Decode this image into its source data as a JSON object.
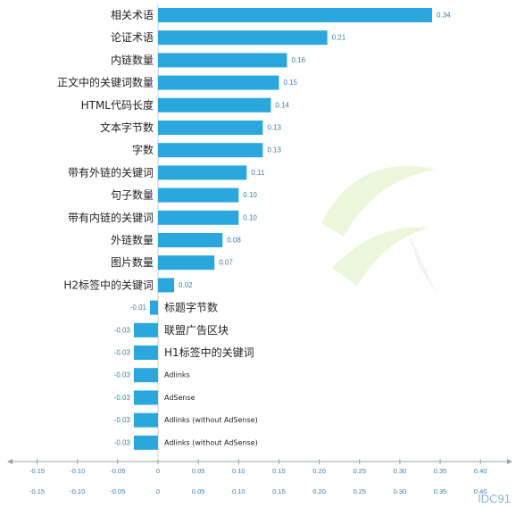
{
  "chart_data": {
    "type": "bar",
    "orientation": "horizontal",
    "categories": [
      "相关术语",
      "论证术语",
      "内链数量",
      "正文中的关键词数量",
      "HTML代码长度",
      "文本字节数",
      "字数",
      "带有外链的关键词",
      "句子数量",
      "带有内链的关键词",
      "外链数量",
      "图片数量",
      "H2标签中的关键词",
      "标题字节数",
      "联盟广告区块",
      "H1标签中的关键词",
      "Adlinks",
      "AdSense",
      "Adlinks (without AdSense)",
      "Adlinks (without AdSense)"
    ],
    "values": [
      0.34,
      0.21,
      0.16,
      0.15,
      0.14,
      0.13,
      0.13,
      0.11,
      0.1,
      0.1,
      0.08,
      0.07,
      0.02,
      -0.01,
      -0.03,
      -0.03,
      -0.03,
      -0.03,
      -0.03,
      -0.03
    ],
    "value_labels": [
      "0.34",
      "0.21",
      "0.16",
      "0.15",
      "0.14",
      "0.13",
      "0.13",
      "0.11",
      "0.10",
      "0.10",
      "0.08",
      "0.07",
      "0.02",
      "-0.01",
      "-0.03",
      "-0.03",
      "-0.03",
      "-0.03",
      "-0.03",
      "-0.03"
    ],
    "xticks": [
      "-0.15",
      "-0.10",
      "-0.05",
      "0",
      "0.05",
      "0.10",
      "0.15",
      "0.20",
      "0.25",
      "0.30",
      "0.35",
      "0.40"
    ],
    "xlim": [
      -0.15,
      0.4
    ],
    "title": "",
    "xlabel": "",
    "ylabel": "",
    "grid": false,
    "legend": "none",
    "bar_color": "#2aa8de",
    "axis_color": "#9aa3aa"
  },
  "watermark": {
    "text": "IDC91",
    "color": "#8fb3d9"
  }
}
